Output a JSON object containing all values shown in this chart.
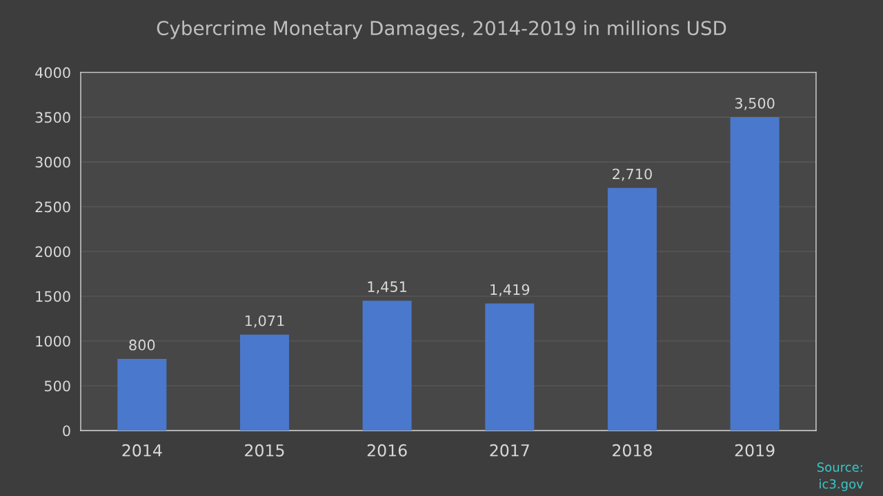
{
  "chart_data": {
    "type": "bar",
    "title": "Cybercrime Monetary Damages, 2014-2019 in millions USD",
    "categories": [
      "2014",
      "2015",
      "2016",
      "2017",
      "2018",
      "2019"
    ],
    "values": [
      800,
      1071,
      1451,
      1419,
      2710,
      3500
    ],
    "value_labels": [
      "800",
      "1,071",
      "1,451",
      "1,419",
      "2,710",
      "3,500"
    ],
    "color": "#4a78cc",
    "ylim": [
      0,
      4000
    ],
    "yticks": [
      0,
      500,
      1000,
      1500,
      2000,
      2500,
      3000,
      3500,
      4000
    ],
    "grid": "y",
    "annotations": [
      "Source:\nic3.gov"
    ]
  }
}
